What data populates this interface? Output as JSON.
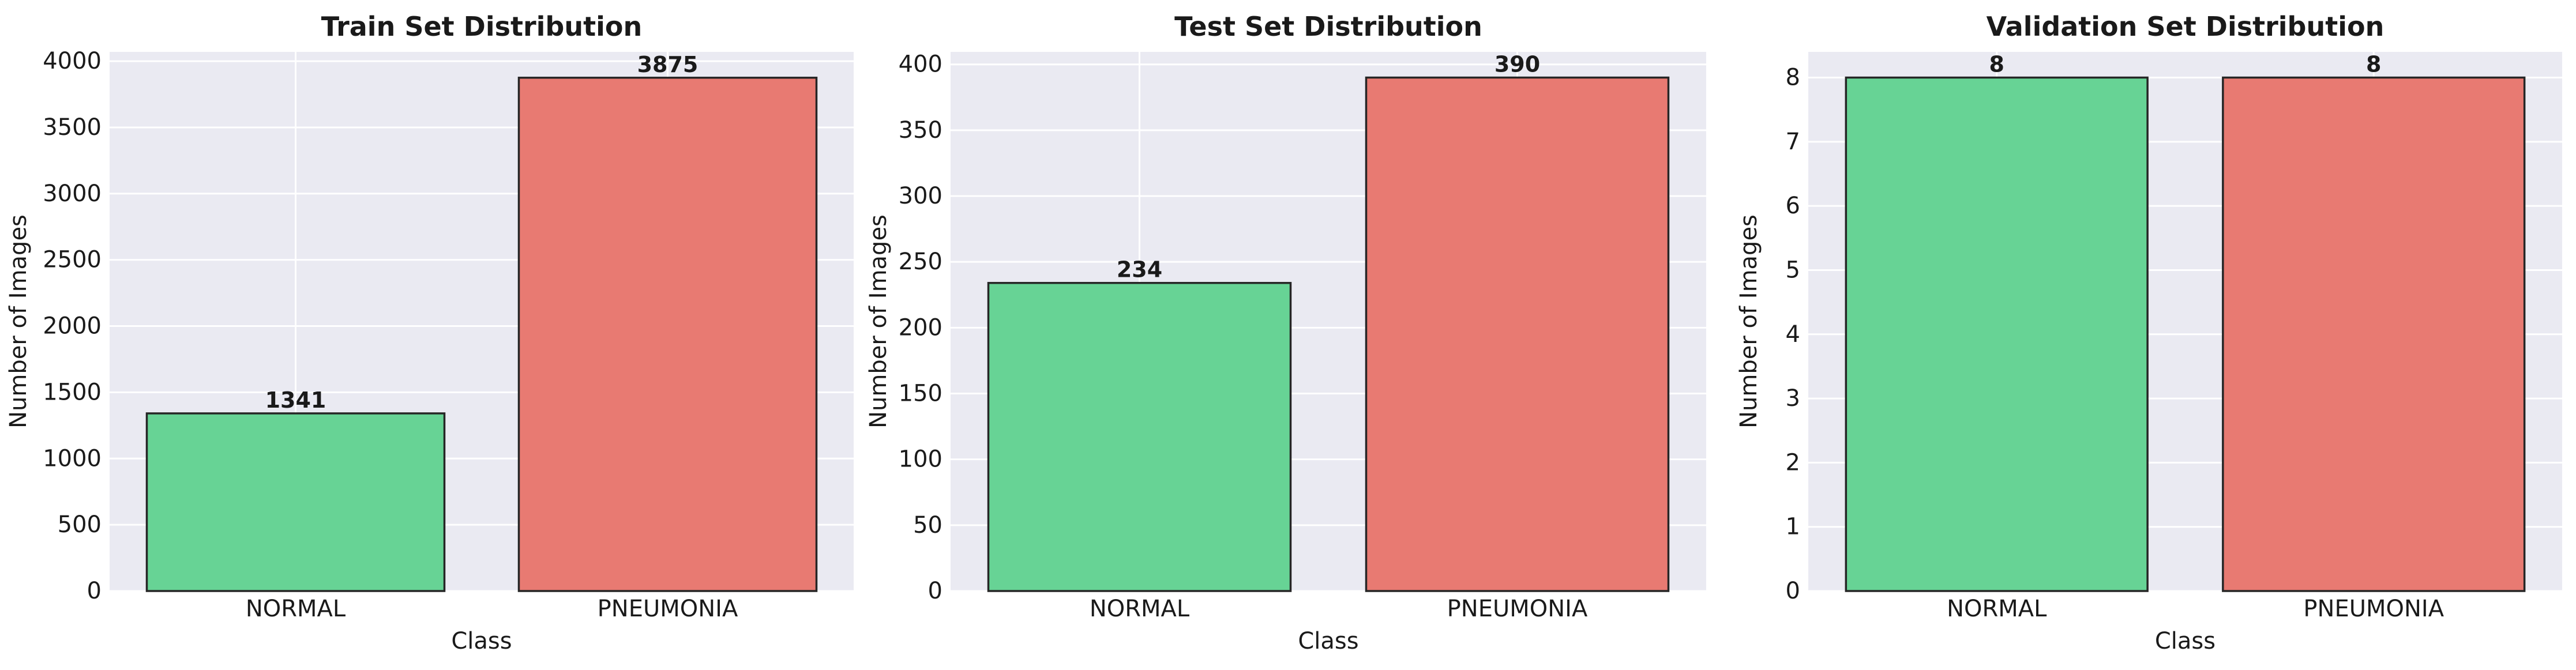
{
  "chart_data": [
    {
      "type": "bar",
      "title": "Train Set Distribution",
      "xlabel": "Class",
      "ylabel": "Number of Images",
      "categories": [
        "NORMAL",
        "PNEUMONIA"
      ],
      "values": [
        1341,
        3875
      ],
      "value_labels": [
        "1341",
        "3875"
      ],
      "colors": [
        "#67d395",
        "#e87a72"
      ],
      "ylim": [
        0,
        4070
      ],
      "yticks": [
        0,
        500,
        1000,
        1500,
        2000,
        2500,
        3000,
        3500,
        4000
      ],
      "grid": true
    },
    {
      "type": "bar",
      "title": "Test Set Distribution",
      "xlabel": "Class",
      "ylabel": "Number of Images",
      "categories": [
        "NORMAL",
        "PNEUMONIA"
      ],
      "values": [
        234,
        390
      ],
      "value_labels": [
        "234",
        "390"
      ],
      "colors": [
        "#67d395",
        "#e87a72"
      ],
      "ylim": [
        0,
        409.5
      ],
      "yticks": [
        0,
        50,
        100,
        150,
        200,
        250,
        300,
        350,
        400
      ],
      "grid": true
    },
    {
      "type": "bar",
      "title": "Validation Set Distribution",
      "xlabel": "Class",
      "ylabel": "Number of Images",
      "categories": [
        "NORMAL",
        "PNEUMONIA"
      ],
      "values": [
        8,
        8
      ],
      "value_labels": [
        "8",
        "8"
      ],
      "colors": [
        "#67d395",
        "#e87a72"
      ],
      "ylim": [
        0,
        8.4
      ],
      "yticks": [
        0,
        1,
        2,
        3,
        4,
        5,
        6,
        7,
        8
      ],
      "grid": true
    }
  ]
}
